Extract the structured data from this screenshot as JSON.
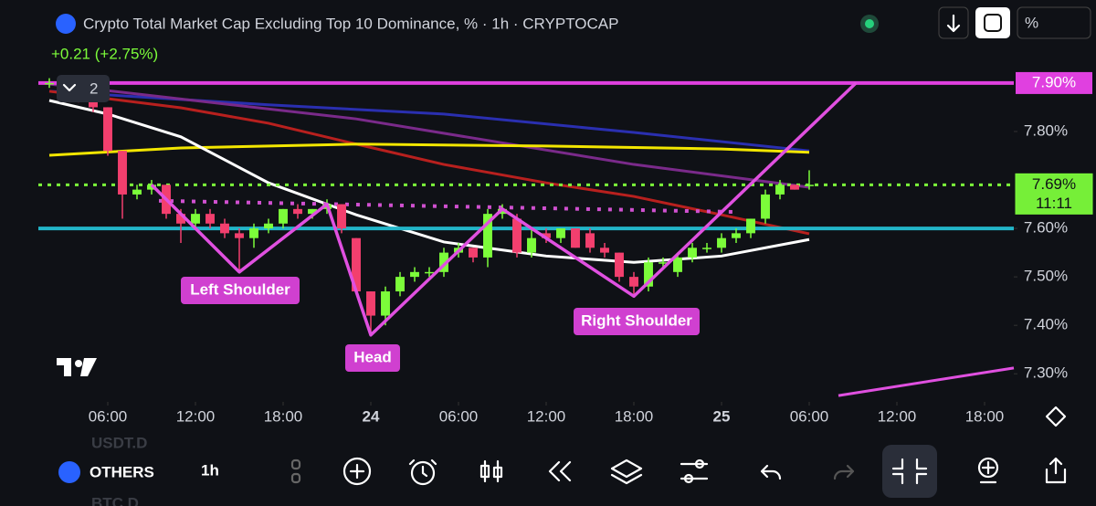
{
  "header": {
    "title": "Crypto Total Market Cap Excluding Top 10 Dominance, % · 1h · CRYPTOCAP",
    "change": "+0.21 (+2.75%)",
    "indicator_count": "2",
    "scale_button": "%"
  },
  "chart_data": {
    "type": "candlestick",
    "up_color": "#7cfc3a",
    "down_color": "#f23f6e",
    "open": [
      7.9,
      7.9,
      7.89,
      7.87,
      7.85,
      7.76,
      7.67,
      7.68,
      7.69,
      7.63,
      7.61,
      7.63,
      7.61,
      7.59,
      7.58,
      7.6,
      7.61,
      7.64,
      7.63,
      7.64,
      7.65,
      7.58,
      7.47,
      7.42,
      7.47,
      7.5,
      7.51,
      7.51,
      7.55,
      7.56,
      7.54,
      7.63,
      7.62,
      7.55,
      7.59,
      7.58,
      7.6,
      7.59,
      7.56,
      7.55,
      7.5,
      7.48,
      7.53,
      7.51,
      7.54,
      7.56,
      7.56,
      7.58,
      7.59,
      7.62,
      7.67,
      7.69,
      7.69
    ],
    "high": [
      7.91,
      7.91,
      7.89,
      7.87,
      7.85,
      7.76,
      7.69,
      7.7,
      7.69,
      7.64,
      7.64,
      7.64,
      7.62,
      7.6,
      7.61,
      7.62,
      7.64,
      7.65,
      7.64,
      7.66,
      7.65,
      7.58,
      7.47,
      7.48,
      7.51,
      7.52,
      7.52,
      7.56,
      7.57,
      7.56,
      7.64,
      7.65,
      7.63,
      7.6,
      7.6,
      7.6,
      7.6,
      7.6,
      7.57,
      7.55,
      7.51,
      7.54,
      7.54,
      7.55,
      7.57,
      7.57,
      7.59,
      7.6,
      7.62,
      7.68,
      7.7,
      7.69,
      7.72
    ],
    "low": [
      7.89,
      7.88,
      7.86,
      7.84,
      7.75,
      7.62,
      7.66,
      7.67,
      7.62,
      7.57,
      7.6,
      7.6,
      7.58,
      7.51,
      7.56,
      7.59,
      7.6,
      7.62,
      7.62,
      7.63,
      7.59,
      7.47,
      7.38,
      7.4,
      7.46,
      7.49,
      7.5,
      7.5,
      7.54,
      7.53,
      7.52,
      7.62,
      7.54,
      7.54,
      7.57,
      7.57,
      7.56,
      7.55,
      7.54,
      7.49,
      7.46,
      7.47,
      7.52,
      7.5,
      7.53,
      7.55,
      7.55,
      7.57,
      7.58,
      7.61,
      7.66,
      7.68,
      7.68
    ],
    "close": [
      7.9,
      7.89,
      7.87,
      7.85,
      7.76,
      7.67,
      7.68,
      7.69,
      7.63,
      7.61,
      7.63,
      7.61,
      7.59,
      7.58,
      7.6,
      7.61,
      7.64,
      7.63,
      7.64,
      7.65,
      7.6,
      7.47,
      7.42,
      7.47,
      7.5,
      7.51,
      7.51,
      7.55,
      7.56,
      7.54,
      7.63,
      7.64,
      7.55,
      7.58,
      7.58,
      7.6,
      7.56,
      7.56,
      7.55,
      7.5,
      7.48,
      7.53,
      7.53,
      7.54,
      7.56,
      7.56,
      7.58,
      7.59,
      7.62,
      7.67,
      7.69,
      7.68,
      7.69
    ],
    "xlim": [
      -0.75,
      66
    ],
    "xticks": [
      {
        "value": 4,
        "label": "06:00"
      },
      {
        "value": 10,
        "label": "12:00"
      },
      {
        "value": 16,
        "label": "18:00"
      },
      {
        "value": 22,
        "label": "24"
      },
      {
        "value": 28,
        "label": "06:00"
      },
      {
        "value": 34,
        "label": "12:00"
      },
      {
        "value": 40,
        "label": "18:00"
      },
      {
        "value": 46,
        "label": "25"
      },
      {
        "value": 52,
        "label": "06:00"
      },
      {
        "value": 58,
        "label": "12:00"
      },
      {
        "value": 64,
        "label": "18:00"
      }
    ],
    "ylim": [
      7.242,
      7.93
    ],
    "yticks": [
      {
        "value": 7.3,
        "label": "7.30%"
      },
      {
        "value": 7.4,
        "label": "7.40%"
      },
      {
        "value": 7.5,
        "label": "7.50%"
      },
      {
        "value": 7.6,
        "label": "7.60%"
      },
      {
        "value": 7.8,
        "label": "7.80%"
      }
    ],
    "overlays": [
      {
        "color": "#2a2fb0",
        "x": [
          0,
          15,
          27,
          40,
          52
        ],
        "values": [
          7.883,
          7.855,
          7.836,
          7.798,
          7.76
        ]
      },
      {
        "color": "#7a2a8a",
        "x": [
          0,
          21,
          40,
          52
        ],
        "values": [
          7.898,
          7.826,
          7.732,
          7.685
        ]
      },
      {
        "color": "#b8201e",
        "x": [
          0,
          9,
          15,
          21,
          27,
          34,
          40,
          46,
          52
        ],
        "values": [
          7.883,
          7.849,
          7.817,
          7.774,
          7.732,
          7.694,
          7.666,
          7.628,
          7.589
        ]
      },
      {
        "color": "#f2e600",
        "x": [
          0,
          9,
          21,
          34,
          46,
          52
        ],
        "values": [
          7.751,
          7.766,
          7.774,
          7.77,
          7.764,
          7.757
        ]
      },
      {
        "color": "#ffffff",
        "x": [
          0,
          4,
          9,
          15,
          21,
          27,
          34,
          40,
          46,
          52
        ],
        "values": [
          7.864,
          7.836,
          7.789,
          7.694,
          7.628,
          7.572,
          7.543,
          7.53,
          7.543,
          7.577
        ]
      }
    ],
    "hlines": [
      {
        "value": 7.9,
        "color": "#e040e0",
        "dash": false,
        "label": "7.90%"
      },
      {
        "value": 7.6,
        "color": "#22b5c8",
        "dash": false
      },
      {
        "value": 7.69,
        "color": "#7cfc3a",
        "dash": true,
        "label": "7.69%",
        "countdown": "11:11"
      }
    ],
    "neckline": {
      "color": "#d050d0",
      "x": [
        7.5,
        47
      ],
      "values": [
        7.657,
        7.634
      ]
    },
    "pattern": {
      "color": "#e050e0",
      "x": [
        7,
        13,
        19,
        22,
        31,
        40,
        55.2
      ],
      "values": [
        7.69,
        7.51,
        7.65,
        7.38,
        7.64,
        7.46,
        7.9
      ]
    },
    "trendline": {
      "color": "#e050e0",
      "x": [
        54,
        66
      ],
      "values": [
        7.255,
        7.312
      ]
    },
    "annotations": [
      "Left Shoulder",
      "Head",
      "Right Shoulder"
    ]
  },
  "toolbar": {
    "symbol": "OTHERS",
    "interval": "1h",
    "ghost_above": "USDT.D",
    "ghost_below": "BTC.D"
  }
}
